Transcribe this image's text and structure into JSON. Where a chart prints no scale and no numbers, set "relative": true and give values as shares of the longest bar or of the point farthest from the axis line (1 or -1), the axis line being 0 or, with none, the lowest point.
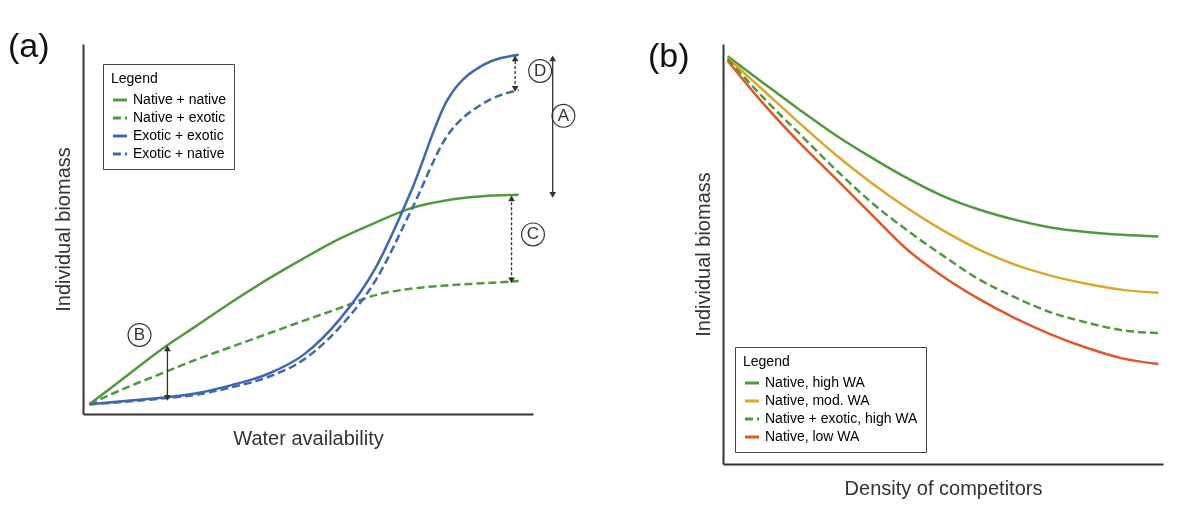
{
  "chart_data": [
    {
      "type": "line",
      "title": "(a)",
      "xlabel": "Water availability",
      "ylabel": "Individual biomass",
      "relative": true,
      "legend": "top left",
      "legend_title": "Legend",
      "categories": [
        null,
        null,
        null,
        null,
        null,
        null,
        null,
        null,
        null,
        null,
        null,
        null,
        null
      ],
      "series": [
        {
          "name": "Native + native",
          "color": "#4e9a3c",
          "line_style": "solid",
          "values": [
            0.027,
            0.103,
            0.179,
            0.246,
            0.313,
            0.376,
            0.434,
            0.488,
            0.533,
            0.573,
            0.595,
            0.606,
            0.61
          ]
        },
        {
          "name": "Native + exotic",
          "color": "#4e9a3c",
          "line_style": "dashed",
          "values": [
            0.027,
            0.072,
            0.112,
            0.152,
            0.188,
            0.224,
            0.26,
            0.295,
            0.331,
            0.349,
            0.358,
            0.364,
            0.37
          ]
        },
        {
          "name": "Exotic + exotic",
          "color": "#3d68b0",
          "line_style": "solid",
          "values": [
            0.027,
            0.036,
            0.045,
            0.058,
            0.081,
            0.112,
            0.166,
            0.264,
            0.407,
            0.622,
            0.873,
            0.971,
            1.0
          ]
        },
        {
          "name": "Exotic + native",
          "color": "#3d68b0",
          "line_style": "dashed",
          "values": [
            0.027,
            0.034,
            0.043,
            0.054,
            0.075,
            0.103,
            0.152,
            0.242,
            0.372,
            0.568,
            0.774,
            0.864,
            0.902
          ]
        }
      ],
      "annotations": [
        "A",
        "B",
        "C",
        "D"
      ]
    },
    {
      "type": "line",
      "title": "(b)",
      "xlabel": "Density of competitors",
      "ylabel": "Individual biomass",
      "relative": true,
      "legend": "bottom left",
      "legend_title": "Legend",
      "categories": [
        null,
        null,
        null,
        null,
        null,
        null,
        null,
        null,
        null,
        null,
        null,
        null,
        null
      ],
      "series": [
        {
          "name": "Native, high WA",
          "color": "#4e9a3c",
          "line_style": "solid",
          "values": [
            1.0,
            0.934,
            0.869,
            0.807,
            0.752,
            0.701,
            0.657,
            0.624,
            0.599,
            0.58,
            0.569,
            0.562,
            0.558
          ]
        },
        {
          "name": "Native, mod. WA",
          "color": "#d9a82a",
          "line_style": "solid",
          "values": [
            0.996,
            0.916,
            0.836,
            0.759,
            0.69,
            0.628,
            0.573,
            0.526,
            0.489,
            0.462,
            0.442,
            0.427,
            0.42
          ]
        },
        {
          "name": "Native + exotic, high WA",
          "color": "#4e9a3c",
          "line_style": "dashed",
          "values": [
            0.993,
            0.898,
            0.81,
            0.723,
            0.642,
            0.573,
            0.511,
            0.453,
            0.409,
            0.372,
            0.347,
            0.328,
            0.321
          ]
        },
        {
          "name": "Native, low WA",
          "color": "#e0582a",
          "line_style": "solid",
          "values": [
            0.989,
            0.883,
            0.788,
            0.701,
            0.613,
            0.526,
            0.46,
            0.405,
            0.358,
            0.318,
            0.285,
            0.259,
            0.245
          ]
        }
      ]
    }
  ]
}
